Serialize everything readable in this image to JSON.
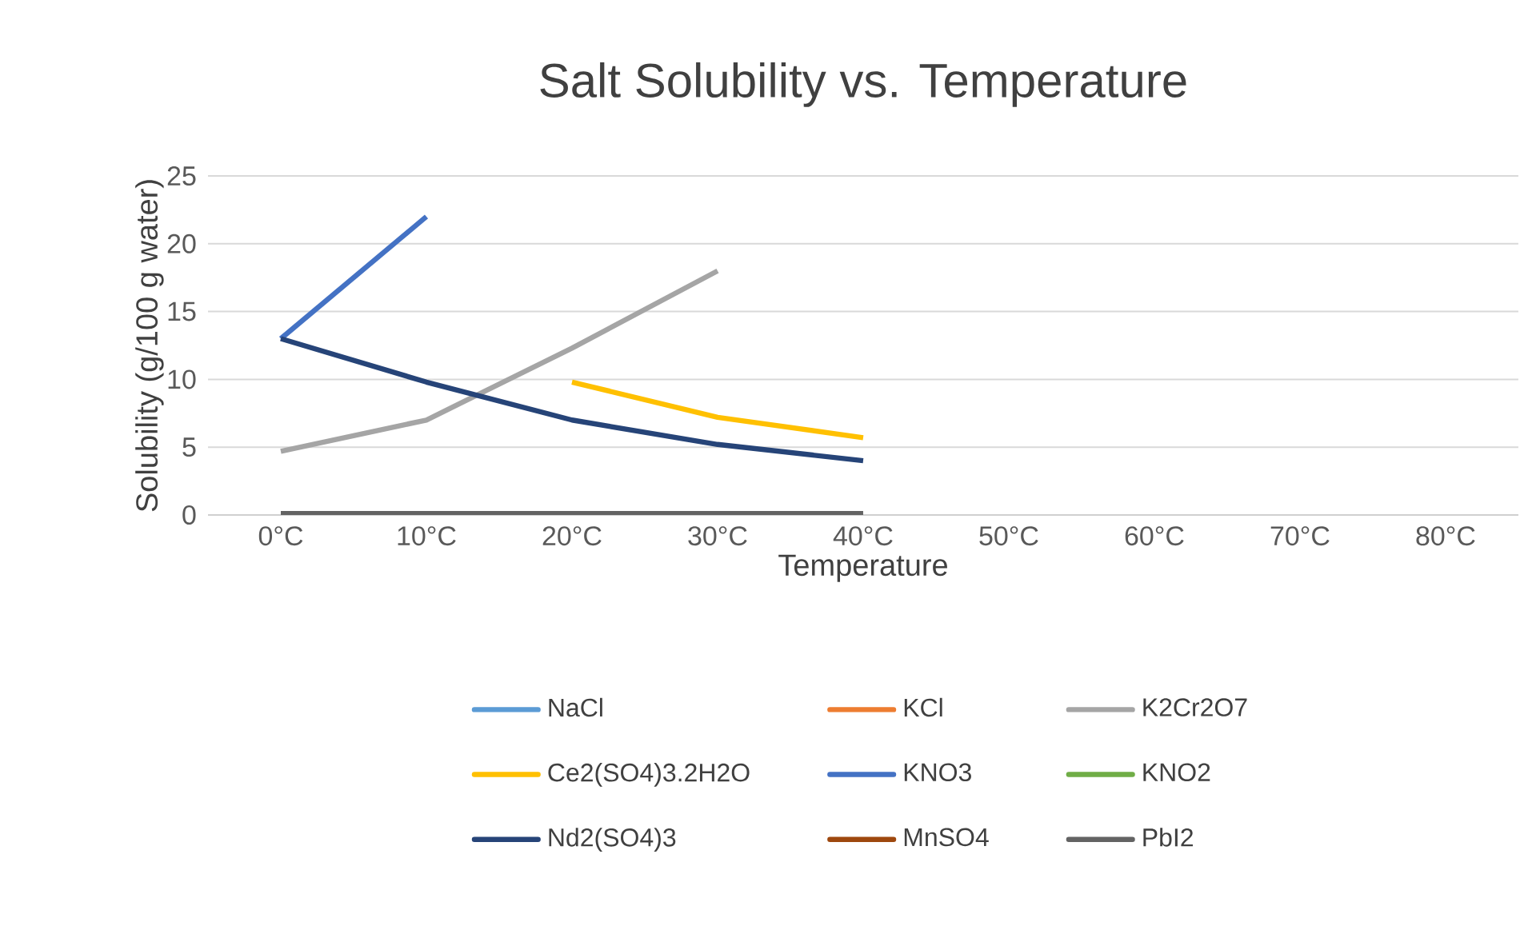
{
  "chart_data": {
    "type": "line",
    "title": "Salt Solubility vs. Temperature",
    "xlabel": "Temperature",
    "ylabel": "Solubility (g/100 g water)",
    "categories": [
      "0°C",
      "10°C",
      "20°C",
      "30°C",
      "40°C",
      "50°C",
      "60°C",
      "70°C",
      "80°C"
    ],
    "ylim": [
      0,
      25
    ],
    "yticks": [
      0,
      5,
      10,
      15,
      20,
      25
    ],
    "grid": "y",
    "legend": "bottom",
    "marker": "none",
    "line_style": "solid",
    "series": [
      {
        "name": "NaCl",
        "color": "#5b9bd5",
        "values": [
          null,
          null,
          null,
          null,
          null,
          null,
          null,
          null,
          null
        ]
      },
      {
        "name": "KCl",
        "color": "#ed7d31",
        "values": [
          null,
          null,
          null,
          null,
          null,
          null,
          null,
          null,
          null
        ]
      },
      {
        "name": "K2Cr2O7",
        "color": "#a5a5a5",
        "values": [
          4.7,
          7.0,
          12.3,
          18,
          null,
          null,
          null,
          null,
          null
        ]
      },
      {
        "name": "Ce2(SO4)3.2H2O",
        "color": "#ffc000",
        "values": [
          null,
          null,
          9.8,
          7.2,
          5.7,
          null,
          null,
          null,
          null
        ]
      },
      {
        "name": "KNO3",
        "color": "#4472c4",
        "values": [
          13,
          22,
          null,
          null,
          null,
          null,
          null,
          null,
          null
        ]
      },
      {
        "name": "KNO2",
        "color": "#70ad47",
        "values": [
          null,
          null,
          null,
          null,
          null,
          null,
          null,
          null,
          null
        ]
      },
      {
        "name": "Nd2(SO4)3",
        "color": "#264478",
        "values": [
          13,
          9.8,
          7.0,
          5.2,
          4.0,
          null,
          null,
          null,
          null
        ]
      },
      {
        "name": "MnSO4",
        "color": "#9e480e",
        "values": [
          null,
          null,
          null,
          null,
          null,
          null,
          null,
          null,
          null
        ]
      },
      {
        "name": "PbI2",
        "color": "#636363",
        "values": [
          0.1,
          0.1,
          0.1,
          0.1,
          0.1,
          null,
          null,
          null,
          null
        ]
      }
    ]
  }
}
